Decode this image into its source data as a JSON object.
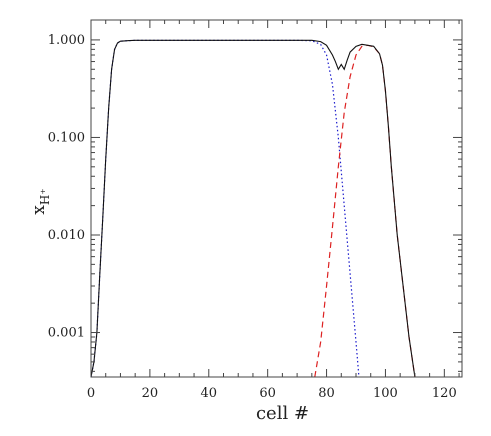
{
  "chart_data": {
    "type": "line",
    "xlabel": "cell #",
    "ylabel": "x",
    "ylabel_sub": "H⁺",
    "x_range": [
      0,
      126
    ],
    "y_range": [
      0.00035,
      1.6
    ],
    "y_scale": "log",
    "grid": false,
    "x_ticks": [
      {
        "value": 0,
        "label": "0"
      },
      {
        "value": 20,
        "label": "20"
      },
      {
        "value": 40,
        "label": "40"
      },
      {
        "value": 60,
        "label": "60"
      },
      {
        "value": 80,
        "label": "80"
      },
      {
        "value": 100,
        "label": "100"
      },
      {
        "value": 120,
        "label": "120"
      }
    ],
    "y_ticks": [
      {
        "value": 0.001,
        "label": "0.001"
      },
      {
        "value": 0.01,
        "label": "0.010"
      },
      {
        "value": 0.1,
        "label": "0.100"
      },
      {
        "value": 1.0,
        "label": "1.000"
      }
    ],
    "series": [
      {
        "style": "dotted",
        "color": "#1a1acc",
        "x": [
          0,
          1,
          2,
          3,
          4,
          5,
          6,
          7,
          8,
          9,
          10,
          12,
          15,
          20,
          30,
          40,
          50,
          60,
          70,
          75,
          78,
          80,
          82,
          84,
          86,
          88,
          90,
          91
        ],
        "y": [
          0.00035,
          0.0005,
          0.001,
          0.004,
          0.015,
          0.06,
          0.2,
          0.5,
          0.8,
          0.93,
          0.97,
          0.98,
          0.99,
          0.99,
          0.99,
          0.99,
          0.99,
          0.99,
          0.99,
          0.98,
          0.9,
          0.7,
          0.35,
          0.1,
          0.02,
          0.004,
          0.0008,
          0.00035
        ]
      },
      {
        "style": "dashed",
        "color": "#dd2222",
        "x": [
          76,
          78,
          80,
          82,
          84,
          86,
          88,
          90,
          92,
          94,
          96,
          98,
          99,
          100,
          101,
          102,
          104,
          106,
          108,
          110
        ],
        "y": [
          0.00035,
          0.0008,
          0.003,
          0.012,
          0.05,
          0.18,
          0.42,
          0.7,
          0.86,
          0.88,
          0.85,
          0.72,
          0.55,
          0.3,
          0.13,
          0.05,
          0.01,
          0.003,
          0.0009,
          0.00035
        ]
      },
      {
        "style": "solid",
        "color": "#111111",
        "x": [
          0,
          1,
          2,
          3,
          4,
          5,
          6,
          7,
          8,
          9,
          10,
          12,
          15,
          20,
          30,
          40,
          50,
          60,
          70,
          75,
          78,
          80,
          82,
          83,
          84,
          85,
          86,
          87,
          88,
          90,
          92,
          94,
          96,
          98,
          99,
          100,
          101,
          102,
          104,
          106,
          108,
          110
        ],
        "y": [
          0.00035,
          0.0005,
          0.001,
          0.004,
          0.015,
          0.06,
          0.2,
          0.5,
          0.8,
          0.93,
          0.97,
          0.98,
          0.99,
          0.99,
          0.99,
          0.99,
          0.99,
          0.99,
          0.99,
          0.99,
          0.96,
          0.88,
          0.7,
          0.6,
          0.5,
          0.56,
          0.5,
          0.62,
          0.75,
          0.86,
          0.9,
          0.88,
          0.86,
          0.72,
          0.55,
          0.3,
          0.13,
          0.05,
          0.01,
          0.003,
          0.0009,
          0.00035
        ]
      }
    ]
  }
}
